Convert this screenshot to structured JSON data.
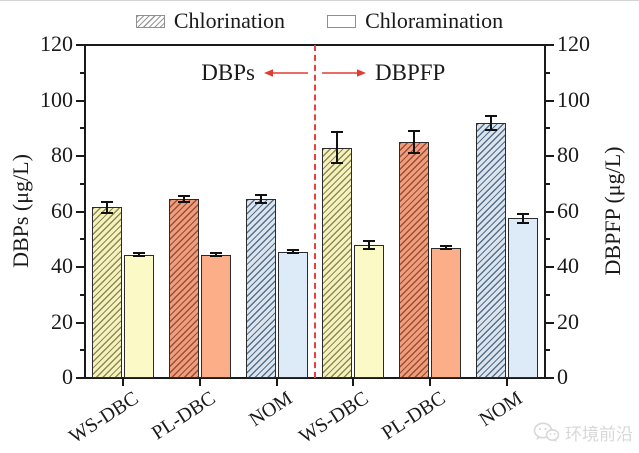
{
  "legend": {
    "items": [
      {
        "label": "Chlorination",
        "style": "hatched"
      },
      {
        "label": "Chloramination",
        "style": "plain"
      }
    ]
  },
  "annotation": {
    "left_label": "DBPs",
    "right_label": "DBPFP",
    "arrow_color": "#e23b34"
  },
  "watermark": {
    "text": "环境前沿"
  },
  "chart_data": {
    "type": "bar",
    "title": "",
    "left_axis": {
      "label": "DBPs (μg/L)",
      "min": 0,
      "max": 120,
      "major_step": 20,
      "minor_step": 10,
      "ticks": [
        0,
        20,
        40,
        60,
        80,
        100,
        120
      ]
    },
    "right_axis": {
      "label": "DBPFP (μg/L)",
      "min": 0,
      "max": 120,
      "major_step": 20,
      "minor_step": 10,
      "ticks": [
        0,
        20,
        40,
        60,
        80,
        100,
        120
      ]
    },
    "categories": [
      "WS-DBC",
      "PL-DBC",
      "NOM",
      "WS-DBC",
      "PL-DBC",
      "NOM"
    ],
    "sections": [
      {
        "name": "DBPs",
        "groups": [
          0,
          1,
          2
        ]
      },
      {
        "name": "DBPFP",
        "groups": [
          3,
          4,
          5
        ]
      }
    ],
    "series": [
      {
        "name": "Chlorination",
        "pattern": "hatched",
        "values": [
          61.5,
          64.5,
          64.5,
          83,
          85,
          92
        ],
        "errors": [
          2,
          1,
          1.5,
          5.5,
          4,
          2.5
        ]
      },
      {
        "name": "Chloramination",
        "pattern": "plain",
        "values": [
          44.5,
          44.5,
          45.5,
          48,
          47,
          57.5
        ],
        "errors": [
          0.5,
          0.5,
          0.5,
          1.5,
          0.5,
          1.5
        ]
      }
    ],
    "group_colors": [
      {
        "fill": "#f5f2c2",
        "hatch": "#8e894d",
        "plain": "#fbf9c6"
      },
      {
        "fill": "#ec9e7d",
        "hatch": "#9e4b33",
        "plain": "#fcae89"
      },
      {
        "fill": "#dce5ee",
        "hatch": "#54708c",
        "plain": "#ddebf8"
      }
    ],
    "divider_color": "#e8403a",
    "gridlines": false,
    "legend_position": "top-center"
  }
}
